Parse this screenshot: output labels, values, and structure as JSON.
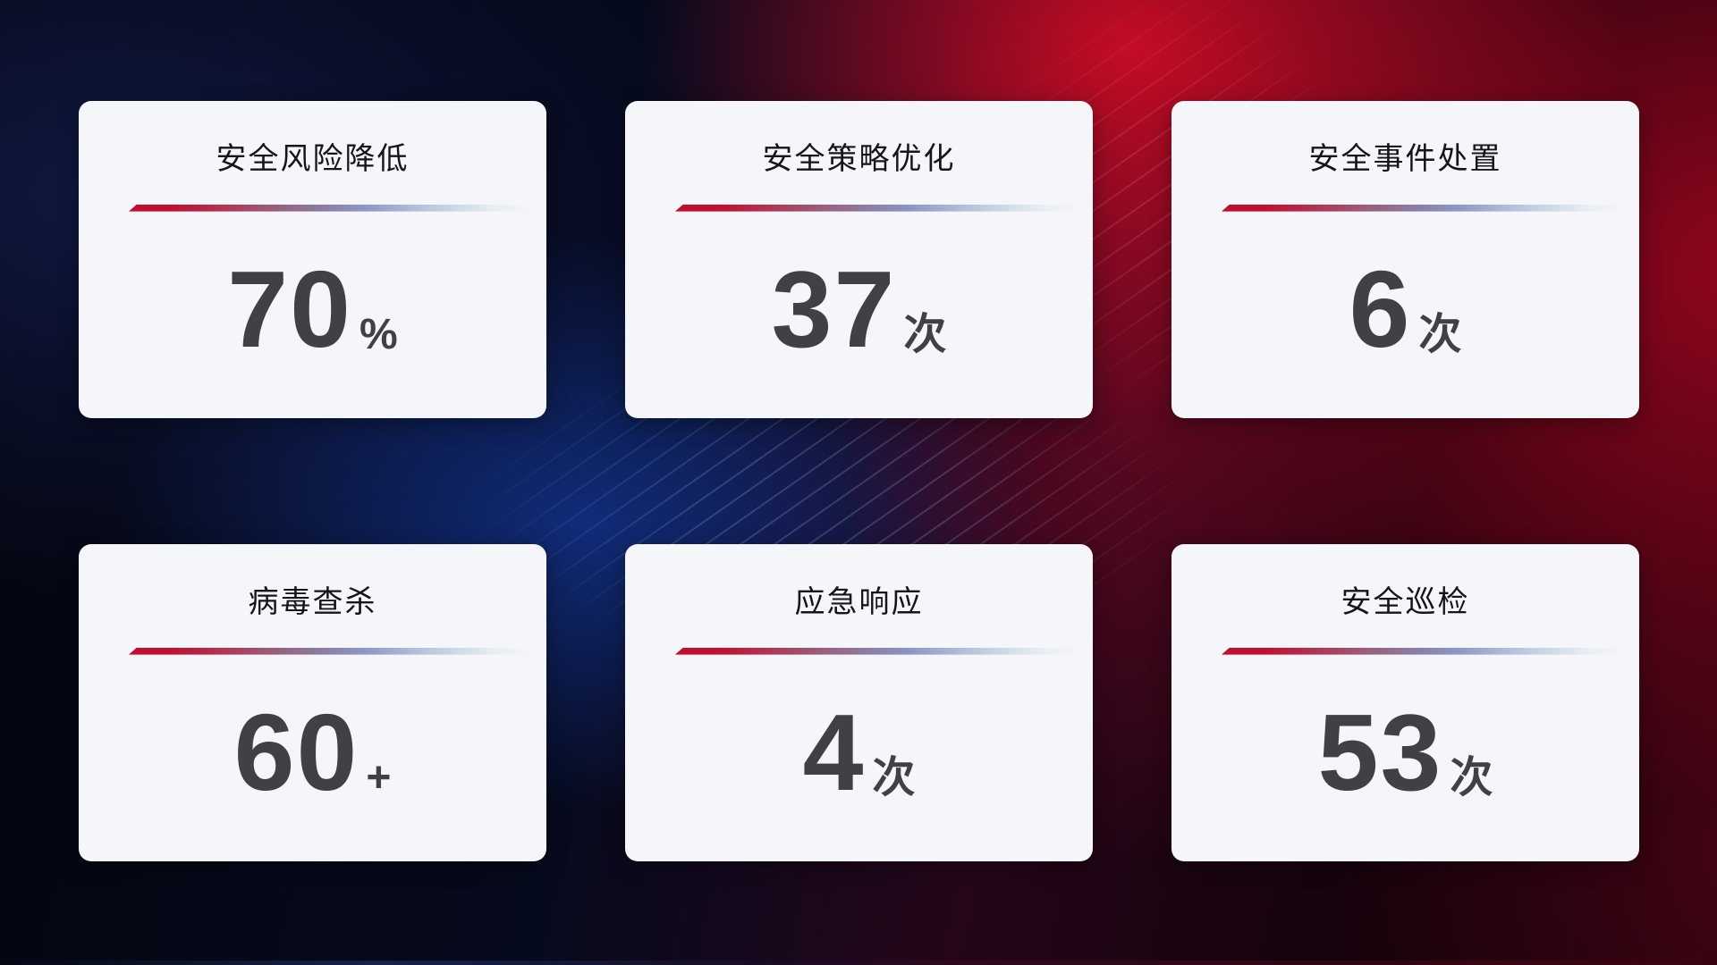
{
  "cards": [
    {
      "title": "安全风险降低",
      "value": "70",
      "unit": "%"
    },
    {
      "title": "安全策略优化",
      "value": "37",
      "unit": "次"
    },
    {
      "title": "安全事件处置",
      "value": "6",
      "unit": "次"
    },
    {
      "title": "病毒查杀",
      "value": "60",
      "unit": "+"
    },
    {
      "title": "应急响应",
      "value": "4",
      "unit": "次"
    },
    {
      "title": "安全巡检",
      "value": "53",
      "unit": "次"
    }
  ],
  "theme": {
    "card_background": "#f5f6f9",
    "title_color": "#15151a",
    "value_color": "#404045",
    "divider_gradient_start": "#c20e2f",
    "divider_gradient_end": "#e8edf4",
    "background_red": "#9b061e",
    "background_blue": "#14348e",
    "background_dark": "#04060e"
  }
}
